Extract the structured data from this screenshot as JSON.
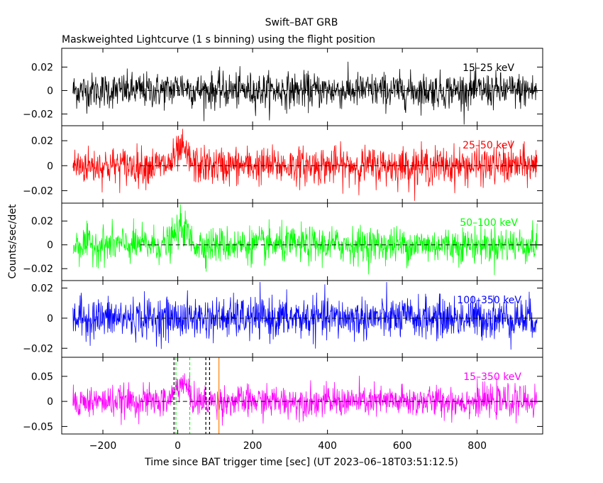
{
  "chart_data": {
    "type": "line",
    "title": "Swift–BAT GRB",
    "subtitle": "Maskweighted Lightcurve (1 s binning) using the flight position",
    "xlabel": "Time since BAT trigger time [sec] (UT 2023–06–18T03:51:12.5)",
    "ylabel": "Counts/sec/det",
    "xlim": [
      -310,
      975
    ],
    "data_range": [
      -280,
      960
    ],
    "binning_s": 1,
    "grid": false,
    "x_ticks": [
      -200,
      0,
      200,
      400,
      600,
      800
    ],
    "x_tick_labels": [
      "−200",
      "0",
      "200",
      "400",
      "600",
      "800"
    ],
    "panels": [
      {
        "name": "15–25 keV",
        "color": "#000000",
        "ylim": [
          -0.03,
          0.036
        ],
        "noise": 0.0075,
        "peak": 0.004,
        "yticks": [
          -0.02,
          0,
          0.02
        ],
        "ytick_labels": [
          "−0.02",
          "0",
          "0.02"
        ]
      },
      {
        "name": "25–50 keV",
        "color": "#ff0000",
        "ylim": [
          -0.03,
          0.032
        ],
        "noise": 0.0075,
        "peak": 0.012,
        "yticks": [
          -0.02,
          0,
          0.02
        ],
        "ytick_labels": [
          "−0.02",
          "0",
          "0.02"
        ]
      },
      {
        "name": "50–100 keV",
        "color": "#00ff00",
        "ylim": [
          -0.03,
          0.035
        ],
        "noise": 0.0075,
        "peak": 0.015,
        "yticks": [
          -0.02,
          0,
          0.02
        ],
        "ytick_labels": [
          "−0.02",
          "0",
          "0.02"
        ]
      },
      {
        "name": "100–350 keV",
        "color": "#0000ff",
        "ylim": [
          -0.026,
          0.025
        ],
        "noise": 0.0068,
        "peak": 0.0,
        "yticks": [
          -0.02,
          0,
          0.02
        ],
        "ytick_labels": [
          "−0.02",
          "0",
          "0.02"
        ]
      },
      {
        "name": "15–350 keV",
        "color": "#ff00ff",
        "ylim": [
          -0.065,
          0.088
        ],
        "noise": 0.0155,
        "peak": 0.038,
        "yticks": [
          -0.05,
          0,
          0.05
        ],
        "ytick_labels": [
          "−0.05",
          "0",
          "0.05"
        ]
      }
    ],
    "markers": [
      {
        "x": -10,
        "color": "#000000",
        "style": "dashed"
      },
      {
        "x": -5,
        "color": "#00ff00",
        "style": "dashed"
      },
      {
        "x": 32,
        "color": "#00ff00",
        "style": "dashed"
      },
      {
        "x": 75,
        "color": "#000000",
        "style": "dashed"
      },
      {
        "x": 85,
        "color": "#000000",
        "style": "dashed"
      },
      {
        "x": 110,
        "color": "#ff8000",
        "style": "solid"
      }
    ]
  }
}
